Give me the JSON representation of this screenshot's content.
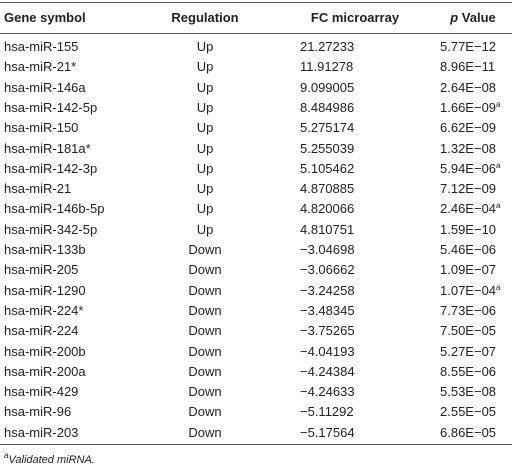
{
  "table": {
    "header": {
      "gene": "Gene symbol",
      "regulation": "Regulation",
      "fc": "FC microarray",
      "p_symbol": "p",
      "p_label": "Value"
    },
    "rows": [
      {
        "gene": "hsa-miR-155",
        "regulation": "Up",
        "fc": "21.27233",
        "p": "5.77E−12"
      },
      {
        "gene": "hsa-miR-21*",
        "regulation": "Up",
        "fc": "11.91278",
        "p": "8.96E−11"
      },
      {
        "gene": "hsa-miR-146a",
        "regulation": "Up",
        "fc": "9.099005",
        "p": "2.64E−08"
      },
      {
        "gene": "hsa-miR-142-5p",
        "regulation": "Up",
        "fc": "8.484986",
        "p": "1.66E−09",
        "mark": "a"
      },
      {
        "gene": "hsa-miR-150",
        "regulation": "Up",
        "fc": "5.275174",
        "p": "6.62E−09"
      },
      {
        "gene": "hsa-miR-181a*",
        "regulation": "Up",
        "fc": "5.255039",
        "p": "1.32E−08"
      },
      {
        "gene": "hsa-miR-142-3p",
        "regulation": "Up",
        "fc": "5.105462",
        "p": "5.94E−06",
        "mark": "a"
      },
      {
        "gene": "hsa-miR-21",
        "regulation": "Up",
        "fc": "4.870885",
        "p": "7.12E−09"
      },
      {
        "gene": "hsa-miR-146b-5p",
        "regulation": "Up",
        "fc": "4.820066",
        "p": "2.46E−04",
        "mark": "a"
      },
      {
        "gene": "hsa-miR-342-5p",
        "regulation": "Up",
        "fc": "4.810751",
        "p": "1.59E−10"
      },
      {
        "gene": "hsa-miR-133b",
        "regulation": "Down",
        "fc": "−3.04698",
        "p": "5.46E−06"
      },
      {
        "gene": "hsa-miR-205",
        "regulation": "Down",
        "fc": "−3.06662",
        "p": "1.09E−07"
      },
      {
        "gene": "hsa-miR-1290",
        "regulation": "Down",
        "fc": "−3.24258",
        "p": "1.07E−04",
        "mark": "a"
      },
      {
        "gene": "hsa-miR-224*",
        "regulation": "Down",
        "fc": "−3.48345",
        "p": "7.73E−06"
      },
      {
        "gene": "hsa-miR-224",
        "regulation": "Down",
        "fc": "−3.75265",
        "p": "7.50E−05"
      },
      {
        "gene": "hsa-miR-200b",
        "regulation": "Down",
        "fc": "−4.04193",
        "p": "5.27E−07"
      },
      {
        "gene": "hsa-miR-200a",
        "regulation": "Down",
        "fc": "−4.24384",
        "p": "8.55E−06"
      },
      {
        "gene": "hsa-miR-429",
        "regulation": "Down",
        "fc": "−4.24633",
        "p": "5.53E−08"
      },
      {
        "gene": "hsa-miR-96",
        "regulation": "Down",
        "fc": "−5.11292",
        "p": "2.55E−05"
      },
      {
        "gene": "hsa-miR-203",
        "regulation": "Down",
        "fc": "−5.17564",
        "p": "6.86E−05"
      }
    ],
    "footnote": {
      "mark": "a",
      "text": "Validated miRNA."
    }
  }
}
